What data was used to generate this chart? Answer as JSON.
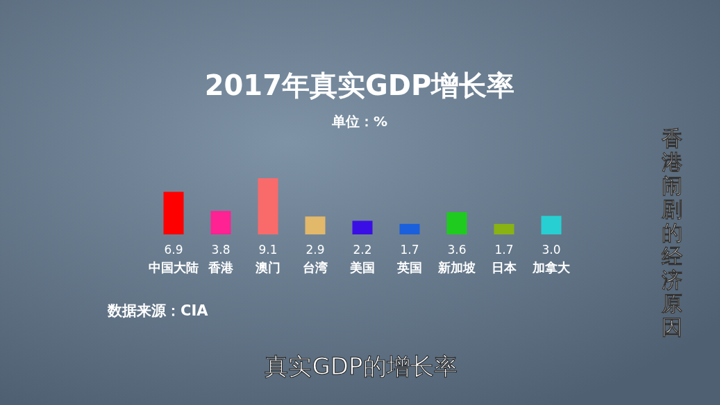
{
  "chart_data": {
    "type": "bar",
    "title": "2017年真实GDP增长率",
    "subtitle": "单位：%",
    "categories": [
      "中国大陆",
      "香港",
      "澳门",
      "台湾",
      "美国",
      "英国",
      "新加坡",
      "日本",
      "加拿大"
    ],
    "values": [
      6.9,
      3.8,
      9.1,
      2.9,
      2.2,
      1.7,
      3.6,
      1.7,
      3.0
    ],
    "colors": [
      "#ff0000",
      "#ff2293",
      "#f96b6b",
      "#e2b86b",
      "#3a0fe6",
      "#1a5fdc",
      "#1fcb1f",
      "#88b313",
      "#27cfd2"
    ],
    "value_labels": [
      "6.9",
      "3.8",
      "9.1",
      "2.9",
      "2.2",
      "1.7",
      "3.6",
      "1.7",
      "3.0"
    ],
    "annotations": [
      "数据来源：CIA",
      "香港闹剧的经济原因",
      "真实GDP的增长率"
    ]
  }
}
